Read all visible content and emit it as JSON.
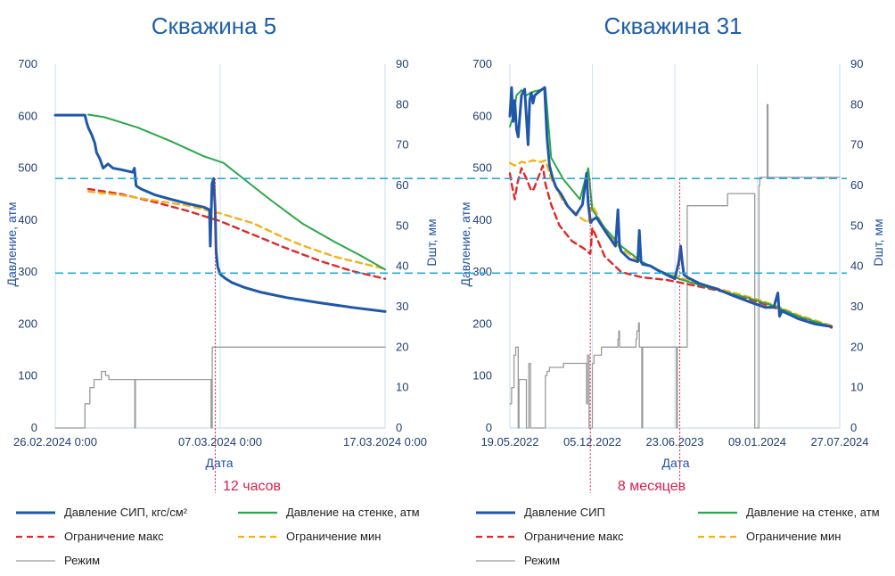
{
  "colors": {
    "sip": "#1f58a8",
    "wall": "#2aa84a",
    "max": "#e02828",
    "min": "#f2b21a",
    "mode": "#9a9a9a",
    "ref": "#2aa8d8",
    "marker": "#d6204c"
  },
  "legend": [
    {
      "key": "sip",
      "label_left": "Давление СИП, кгс/см²",
      "label_right": "Давление СИП"
    },
    {
      "key": "wall",
      "label_left": "Давление на стенке, атм",
      "label_right": "Давление на стенке, атм"
    },
    {
      "key": "max",
      "label_left": "Ограничение макс",
      "label_right": "Ограничение макс"
    },
    {
      "key": "min",
      "label_left": "Ограничение мин",
      "label_right": "Ограничение мин"
    },
    {
      "key": "mode",
      "label_left": "Режим",
      "label_right": "Режим"
    }
  ],
  "chart_data": [
    {
      "type": "line",
      "title": "Скважина 5",
      "xlabel": "Дата",
      "ylabel": "Давление, атм",
      "y2label": "Dшт, мм",
      "ylim": [
        0,
        700
      ],
      "y2lim": [
        0,
        90
      ],
      "xlim": [
        0,
        20
      ],
      "x_unit": "days since 26.02.2024 00:00",
      "x_ticks": [
        0,
        10,
        20
      ],
      "x_tick_labels": [
        "26.02.2024 0:00",
        "07.03.2024 0:00",
        "17.03.2024 0:00"
      ],
      "y_ticks": [
        0,
        100,
        200,
        300,
        400,
        500,
        600,
        700
      ],
      "y2_ticks": [
        0,
        10,
        20,
        30,
        40,
        50,
        60,
        70,
        80,
        90
      ],
      "reference_lines": [
        480,
        298
      ],
      "markers": {
        "x": [
          9.7
        ],
        "label": "12 часов"
      },
      "series": [
        {
          "key": "sip",
          "name": "Давление СИП, кгс/см²",
          "axis": "left",
          "x": [
            0,
            1.8,
            1.9,
            2.0,
            2.2,
            2.4,
            2.5,
            2.7,
            2.9,
            3.2,
            3.5,
            4.0,
            4.7,
            4.8,
            4.9,
            5.2,
            6.0,
            7.0,
            8.0,
            9.0,
            9.35,
            9.4,
            9.5,
            9.6,
            9.7,
            9.75,
            9.85,
            10.0,
            10.3,
            10.7,
            11.5,
            12.5,
            14.0,
            16.0,
            18.0,
            20.0
          ],
          "y": [
            602,
            602,
            588,
            578,
            565,
            548,
            530,
            518,
            500,
            508,
            500,
            497,
            492,
            500,
            466,
            460,
            449,
            440,
            432,
            425,
            420,
            350,
            470,
            480,
            420,
            340,
            310,
            296,
            288,
            280,
            270,
            261,
            251,
            241,
            232,
            224
          ]
        },
        {
          "key": "wall",
          "name": "Давление на стенке, атм",
          "axis": "left",
          "x": [
            2.0,
            3.0,
            5.0,
            7.0,
            9.0,
            10.2,
            11.0,
            13.0,
            15.0,
            17.0,
            18.5,
            20.0
          ],
          "y": [
            603,
            598,
            578,
            552,
            523,
            510,
            490,
            440,
            393,
            357,
            332,
            305
          ]
        },
        {
          "key": "max",
          "name": "Ограничение макс",
          "axis": "left",
          "x": [
            2.0,
            4.0,
            6.0,
            8.0,
            10.0,
            12.0,
            14.0,
            16.0,
            18.0,
            20.0
          ],
          "y": [
            460,
            450,
            435,
            418,
            398,
            372,
            346,
            322,
            302,
            287
          ]
        },
        {
          "key": "min",
          "name": "Ограничение мин",
          "axis": "left",
          "x": [
            2.0,
            4.0,
            6.0,
            8.0,
            10.0,
            12.0,
            14.0,
            15.0,
            17.0,
            20.0
          ],
          "y": [
            455,
            448,
            438,
            428,
            413,
            394,
            364,
            351,
            329,
            306
          ]
        },
        {
          "key": "mode",
          "name": "Режим",
          "axis": "right",
          "x": [
            0,
            1.8,
            1.8,
            2.1,
            2.1,
            2.35,
            2.35,
            2.8,
            2.8,
            3.05,
            3.05,
            3.25,
            3.25,
            4.3,
            4.3,
            4.82,
            4.82,
            4.86,
            4.86,
            9.45,
            9.45,
            9.52,
            9.52,
            20.0
          ],
          "y": [
            0,
            0,
            6,
            6,
            10,
            10,
            12,
            12,
            14,
            14,
            13,
            13,
            12,
            12,
            12,
            12,
            0,
            0,
            12,
            12,
            0,
            0,
            20,
            20
          ]
        }
      ]
    },
    {
      "type": "line",
      "title": "Скважина 31",
      "xlabel": "Дата",
      "ylabel": "Давление, атм",
      "y2label": "Dшт, мм",
      "ylim": [
        0,
        700
      ],
      "y2lim": [
        0,
        90
      ],
      "xlim": [
        0,
        800
      ],
      "x_unit": "days since 19.05.2022",
      "x_ticks": [
        0,
        200,
        400,
        600,
        800
      ],
      "x_tick_labels": [
        "19.05.2022",
        "05.12.2022",
        "23.06.2023",
        "09.01.2024",
        "27.07.2024"
      ],
      "y_ticks": [
        0,
        100,
        200,
        300,
        400,
        500,
        600,
        700
      ],
      "y2_ticks": [
        0,
        10,
        20,
        30,
        40,
        50,
        60,
        70,
        80,
        90
      ],
      "reference_lines": [
        480,
        298
      ],
      "markers": {
        "x": [
          195,
          412
        ],
        "label": "8 месяцев"
      },
      "series": [
        {
          "key": "sip",
          "name": "Давление СИП",
          "axis": "left",
          "x": [
            0,
            4,
            8,
            12,
            16,
            20,
            28,
            36,
            44,
            48,
            52,
            56,
            60,
            72,
            84,
            90,
            96,
            104,
            112,
            124,
            140,
            160,
            176,
            186,
            190,
            196,
            200,
            210,
            230,
            256,
            262,
            266,
            270,
            290,
            310,
            314,
            318,
            322,
            340,
            360,
            380,
            400,
            410,
            414,
            418,
            422,
            430,
            460,
            500,
            540,
            580,
            620,
            640,
            650,
            654,
            660,
            700,
            740,
            780
          ],
          "y": [
            600,
            655,
            590,
            630,
            575,
            560,
            640,
            652,
            545,
            630,
            645,
            625,
            640,
            648,
            655,
            560,
            505,
            480,
            463,
            450,
            427,
            410,
            430,
            490,
            430,
            395,
            400,
            405,
            380,
            350,
            420,
            350,
            340,
            325,
            320,
            380,
            320,
            315,
            312,
            303,
            295,
            287,
            320,
            350,
            320,
            295,
            290,
            278,
            268,
            255,
            243,
            232,
            232,
            260,
            215,
            225,
            210,
            200,
            195
          ]
        },
        {
          "key": "wall",
          "name": "Давление на стенке, атм",
          "axis": "left",
          "x": [
            0,
            8,
            16,
            28,
            40,
            50,
            60,
            72,
            86,
            100,
            130,
            170,
            190,
            200,
            230,
            270,
            320,
            370,
            410,
            460,
            520,
            580,
            640,
            700,
            780
          ],
          "y": [
            580,
            600,
            640,
            650,
            640,
            645,
            648,
            650,
            655,
            520,
            478,
            440,
            500,
            420,
            385,
            350,
            320,
            300,
            287,
            275,
            262,
            250,
            235,
            215,
            195
          ]
        },
        {
          "key": "max",
          "name": "Ограничение макс",
          "axis": "left",
          "x": [
            0,
            6,
            12,
            18,
            28,
            40,
            52,
            58,
            80,
            86,
            100,
            120,
            150,
            180,
            195,
            200,
            230,
            270,
            320,
            380,
            412,
            460,
            520,
            580,
            640,
            700,
            780
          ],
          "y": [
            490,
            462,
            440,
            470,
            500,
            480,
            456,
            460,
            505,
            470,
            430,
            390,
            360,
            345,
            335,
            385,
            330,
            300,
            290,
            285,
            280,
            272,
            262,
            248,
            232,
            213,
            193
          ]
        },
        {
          "key": "min",
          "name": "Ограничение мин",
          "axis": "left",
          "x": [
            0,
            12,
            28,
            40,
            55,
            75,
            86,
            100,
            130,
            170,
            190,
            200,
            230,
            270,
            320,
            370,
            410,
            460,
            520,
            580,
            640,
            700,
            780
          ],
          "y": [
            510,
            505,
            512,
            510,
            515,
            512,
            515,
            480,
            435,
            405,
            395,
            430,
            380,
            345,
            318,
            300,
            290,
            277,
            265,
            252,
            237,
            217,
            197
          ]
        },
        {
          "key": "mode",
          "name": "Режим",
          "axis": "right",
          "x": [
            0,
            4,
            4,
            10,
            10,
            14,
            14,
            20,
            20,
            22,
            22,
            40,
            40,
            46,
            46,
            50,
            50,
            86,
            86,
            90,
            90,
            96,
            96,
            130,
            130,
            186,
            186,
            188,
            188,
            192,
            192,
            200,
            200,
            204,
            204,
            222,
            222,
            262,
            262,
            264,
            264,
            266,
            266,
            306,
            306,
            308,
            308,
            312,
            312,
            314,
            314,
            320,
            320,
            322,
            322,
            404,
            404,
            406,
            406,
            408,
            408,
            430,
            430,
            528,
            528,
            594,
            594,
            604,
            604,
            606,
            606,
            624,
            624,
            626,
            626,
            800
          ],
          "y": [
            6,
            6,
            10,
            10,
            18,
            18,
            20,
            20,
            0,
            0,
            12,
            12,
            0,
            0,
            16,
            16,
            0,
            0,
            13,
            13,
            14,
            14,
            15,
            15,
            16,
            16,
            6,
            6,
            18,
            18,
            0,
            0,
            16,
            16,
            18,
            18,
            20,
            20,
            22,
            22,
            24,
            24,
            20,
            20,
            22,
            22,
            24,
            24,
            26,
            26,
            20,
            20,
            0,
            0,
            20,
            20,
            0,
            0,
            20,
            20,
            20,
            20,
            55,
            55,
            58,
            58,
            0,
            0,
            60,
            60,
            62,
            62,
            80,
            80,
            62,
            62
          ]
        }
      ]
    }
  ]
}
